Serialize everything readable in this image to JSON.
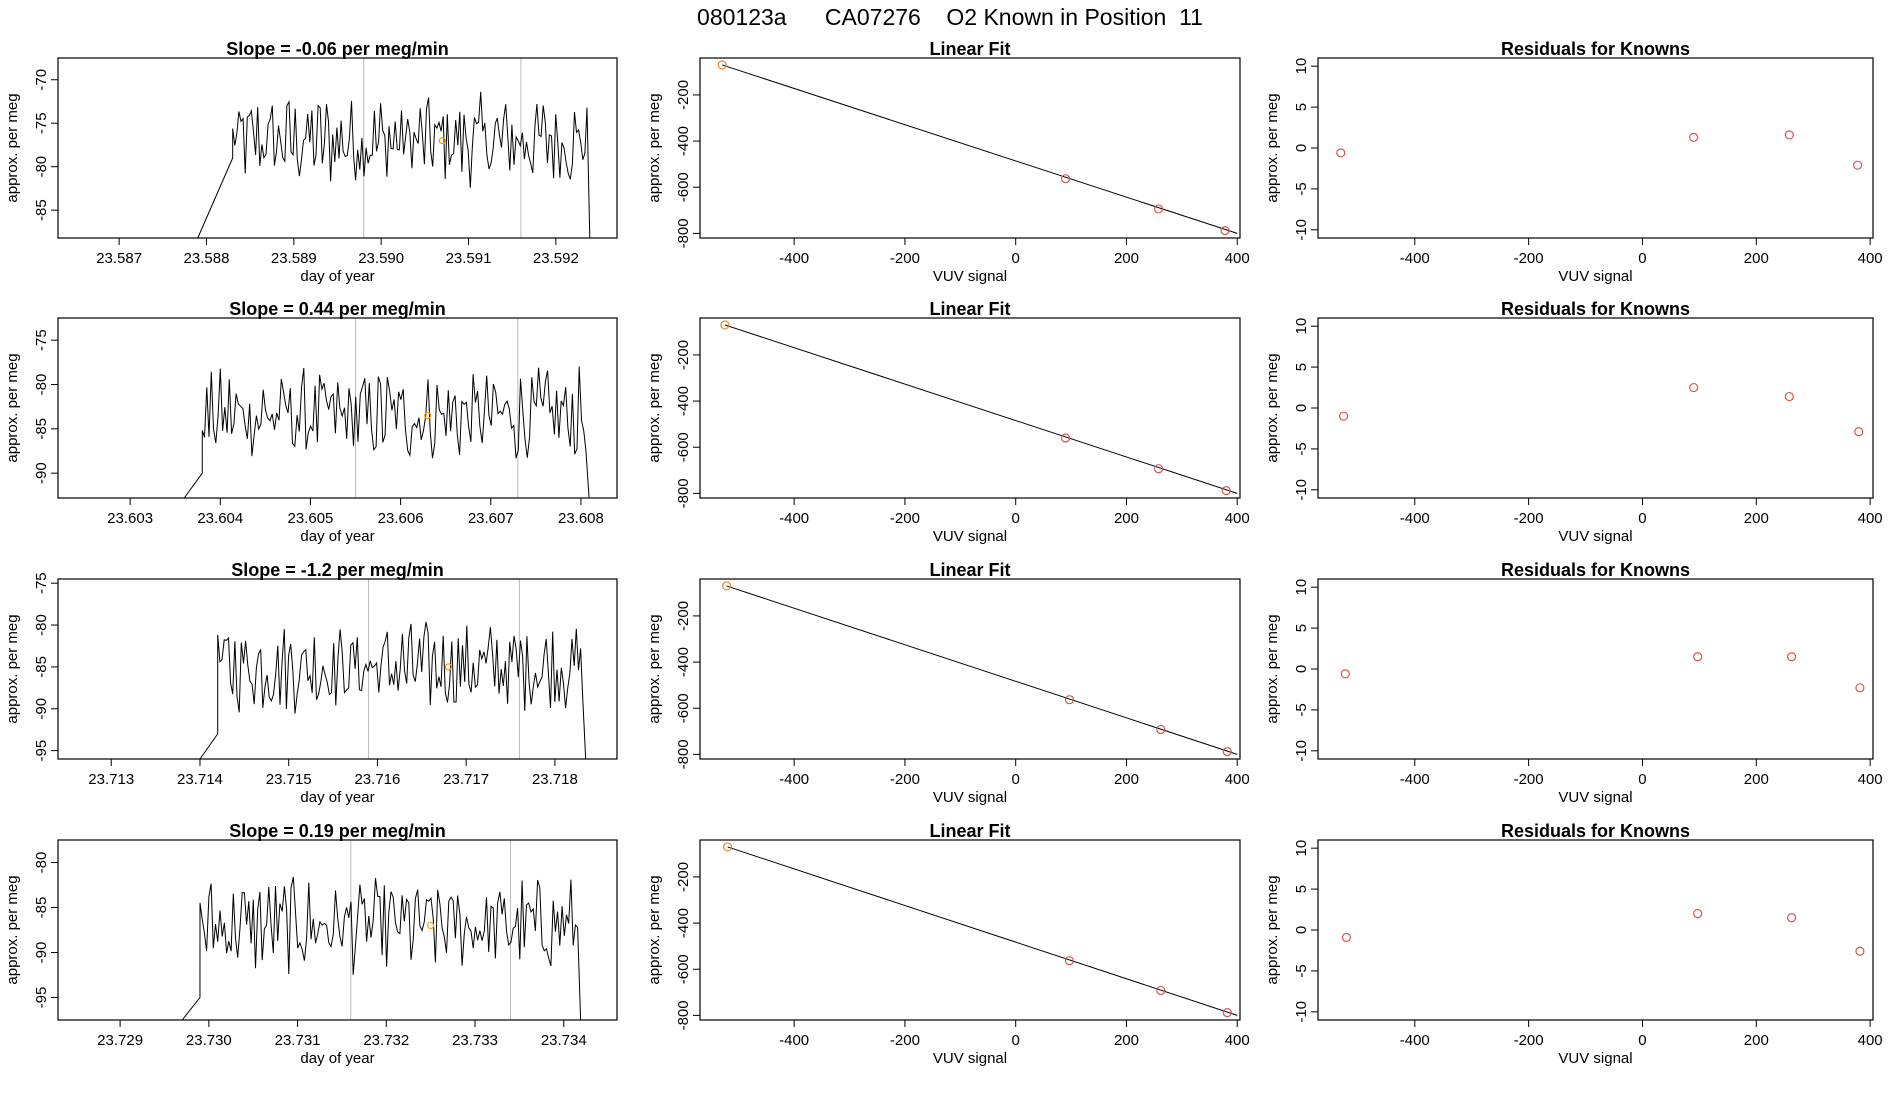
{
  "figure": {
    "title": "080123a      CA07276    O2 Known in Position  11"
  },
  "chart_data": [
    {
      "type": "line",
      "title": "Slope =  -0.06  per meg/min",
      "xlabel": "day of year",
      "ylabel": "approx. per meg",
      "xlim": [
        23.5863,
        23.5927
      ],
      "ylim": [
        -88.2,
        -67.5
      ],
      "xticks": [
        "23.587",
        "23.588",
        "23.589",
        "23.590",
        "23.591",
        "23.592"
      ],
      "xtick_values": [
        23.587,
        23.588,
        23.589,
        23.59,
        23.591,
        23.592
      ],
      "yticks": [
        "-85",
        "-80",
        "-75",
        "-70"
      ],
      "ytick_values": [
        -85,
        -80,
        -75,
        -70
      ],
      "vlines": [
        23.5898,
        23.5916
      ],
      "series_x": [
        23.5879,
        23.5883
      ],
      "series_y": [
        -88.2,
        -79.0
      ],
      "marker": [
        23.5907,
        -77.0
      ]
    },
    {
      "type": "scatter",
      "title": "Linear Fit",
      "xlabel": "VUV signal",
      "ylabel": "approx. per meg",
      "xlim": [
        -570,
        405
      ],
      "ylim": [
        -820,
        -40
      ],
      "xticks": [
        "-400",
        "-200",
        "0",
        "200",
        "400"
      ],
      "xtick_values": [
        -400,
        -200,
        0,
        200,
        400
      ],
      "yticks": [
        "-800",
        "-600",
        "-400",
        "-200"
      ],
      "ytick_values": [
        -800,
        -600,
        -400,
        -200
      ],
      "points": [
        [
          -530,
          -70
        ],
        [
          90,
          -563
        ],
        [
          258,
          -694
        ],
        [
          378,
          -788
        ]
      ],
      "fit_line": [
        [
          -530,
          -70
        ],
        [
          400,
          -800
        ]
      ]
    },
    {
      "type": "scatter",
      "title": "Residuals for Knowns",
      "xlabel": "VUV signal",
      "ylabel": "approx. per meg",
      "xlim": [
        -570,
        405
      ],
      "ylim": [
        -11,
        11
      ],
      "xticks": [
        "-400",
        "-200",
        "0",
        "200",
        "400"
      ],
      "xtick_values": [
        -400,
        -200,
        0,
        200,
        400
      ],
      "yticks": [
        "-10",
        "-5",
        "0",
        "5",
        "10"
      ],
      "ytick_values": [
        -10,
        -5,
        0,
        5,
        10
      ],
      "points": [
        [
          -530,
          -0.6
        ],
        [
          90,
          1.3
        ],
        [
          258,
          1.6
        ],
        [
          378,
          -2.1
        ]
      ]
    },
    {
      "type": "line",
      "title": "Slope =  0.44  per meg/min",
      "xlabel": "day of year",
      "ylabel": "approx. per meg",
      "xlim": [
        23.6022,
        23.6084
      ],
      "ylim": [
        -92.8,
        -72.5
      ],
      "xticks": [
        "23.603",
        "23.604",
        "23.605",
        "23.606",
        "23.607",
        "23.608"
      ],
      "xtick_values": [
        23.603,
        23.604,
        23.605,
        23.606,
        23.607,
        23.608
      ],
      "yticks": [
        "-90",
        "-85",
        "-80",
        "-75"
      ],
      "ytick_values": [
        -90,
        -85,
        -80,
        -75
      ],
      "vlines": [
        23.6055,
        23.6073
      ],
      "series_x": [
        23.6036,
        23.6038
      ],
      "series_y": [
        -92.8,
        -90.0
      ],
      "marker": [
        23.6063,
        -83.5
      ]
    },
    {
      "type": "scatter",
      "title": "Linear Fit",
      "xlabel": "VUV signal",
      "ylabel": "approx. per meg",
      "xlim": [
        -570,
        405
      ],
      "ylim": [
        -820,
        -40
      ],
      "xticks": [
        "-400",
        "-200",
        "0",
        "200",
        "400"
      ],
      "xtick_values": [
        -400,
        -200,
        0,
        200,
        400
      ],
      "yticks": [
        "-800",
        "-600",
        "-400",
        "-200"
      ],
      "ytick_values": [
        -800,
        -600,
        -400,
        -200
      ],
      "points": [
        [
          -525,
          -70
        ],
        [
          90,
          -560
        ],
        [
          258,
          -693
        ],
        [
          380,
          -788
        ]
      ],
      "fit_line": [
        [
          -525,
          -70
        ],
        [
          400,
          -800
        ]
      ]
    },
    {
      "type": "scatter",
      "title": "Residuals for Knowns",
      "xlabel": "VUV signal",
      "ylabel": "approx. per meg",
      "xlim": [
        -570,
        405
      ],
      "ylim": [
        -11,
        11
      ],
      "xticks": [
        "-400",
        "-200",
        "0",
        "200",
        "400"
      ],
      "xtick_values": [
        -400,
        -200,
        0,
        200,
        400
      ],
      "yticks": [
        "-10",
        "-5",
        "0",
        "5",
        "10"
      ],
      "ytick_values": [
        -10,
        -5,
        0,
        5,
        10
      ],
      "points": [
        [
          -525,
          -1.0
        ],
        [
          90,
          2.5
        ],
        [
          258,
          1.4
        ],
        [
          380,
          -2.9
        ]
      ]
    },
    {
      "type": "line",
      "title": "Slope =  -1.2  per meg/min",
      "xlabel": "day of year",
      "ylabel": "approx. per meg",
      "xlim": [
        23.7124,
        23.7187
      ],
      "ylim": [
        -96,
        -74.5
      ],
      "xticks": [
        "23.713",
        "23.714",
        "23.715",
        "23.716",
        "23.717",
        "23.718"
      ],
      "xtick_values": [
        23.713,
        23.714,
        23.715,
        23.716,
        23.717,
        23.718
      ],
      "yticks": [
        "-95",
        "-90",
        "-85",
        "-80",
        "-75"
      ],
      "ytick_values": [
        -95,
        -90,
        -85,
        -80,
        -75
      ],
      "vlines": [
        23.7159,
        23.7176
      ],
      "series_x": [
        23.714,
        23.7142
      ],
      "series_y": [
        -96,
        -93.0
      ],
      "marker": [
        23.7168,
        -85.0
      ]
    },
    {
      "type": "scatter",
      "title": "Linear Fit",
      "xlabel": "VUV signal",
      "ylabel": "approx. per meg",
      "xlim": [
        -570,
        405
      ],
      "ylim": [
        -820,
        -40
      ],
      "xticks": [
        "-400",
        "-200",
        "0",
        "200",
        "400"
      ],
      "xtick_values": [
        -400,
        -200,
        0,
        200,
        400
      ],
      "yticks": [
        "-800",
        "-600",
        "-400",
        "-200"
      ],
      "ytick_values": [
        -800,
        -600,
        -400,
        -200
      ],
      "points": [
        [
          -522,
          -70
        ],
        [
          97,
          -563
        ],
        [
          262,
          -692
        ],
        [
          382,
          -788
        ]
      ],
      "fit_line": [
        [
          -522,
          -70
        ],
        [
          400,
          -800
        ]
      ]
    },
    {
      "type": "scatter",
      "title": "Residuals for Knowns",
      "xlabel": "VUV signal",
      "ylabel": "approx. per meg",
      "xlim": [
        -570,
        405
      ],
      "ylim": [
        -11,
        11
      ],
      "xticks": [
        "-400",
        "-200",
        "0",
        "200",
        "400"
      ],
      "xtick_values": [
        -400,
        -200,
        0,
        200,
        400
      ],
      "yticks": [
        "-10",
        "-5",
        "0",
        "5",
        "10"
      ],
      "ytick_values": [
        -10,
        -5,
        0,
        5,
        10
      ],
      "points": [
        [
          -522,
          -0.6
        ],
        [
          97,
          1.5
        ],
        [
          262,
          1.5
        ],
        [
          382,
          -2.3
        ]
      ]
    },
    {
      "type": "line",
      "title": "Slope =  0.19  per meg/min",
      "xlabel": "day of year",
      "ylabel": "approx. per meg",
      "xlim": [
        23.7283,
        23.7346
      ],
      "ylim": [
        -97.5,
        -77.5
      ],
      "xticks": [
        "23.729",
        "23.730",
        "23.731",
        "23.732",
        "23.733",
        "23.734"
      ],
      "xtick_values": [
        23.729,
        23.73,
        23.731,
        23.732,
        23.733,
        23.734
      ],
      "yticks": [
        "-95",
        "-90",
        "-85",
        "-80"
      ],
      "ytick_values": [
        -95,
        -90,
        -85,
        -80
      ],
      "vlines": [
        23.7316,
        23.7334
      ],
      "series_x": [
        23.7297,
        23.7299
      ],
      "series_y": [
        -97.5,
        -95.0
      ],
      "marker": [
        23.7325,
        -87.0
      ]
    },
    {
      "type": "scatter",
      "title": "Linear Fit",
      "xlabel": "VUV signal",
      "ylabel": "approx. per meg",
      "xlim": [
        -570,
        405
      ],
      "ylim": [
        -820,
        -40
      ],
      "xticks": [
        "-400",
        "-200",
        "0",
        "200",
        "400"
      ],
      "xtick_values": [
        -400,
        -200,
        0,
        200,
        400
      ],
      "yticks": [
        "-800",
        "-600",
        "-400",
        "-200"
      ],
      "ytick_values": [
        -800,
        -600,
        -400,
        -200
      ],
      "points": [
        [
          -520,
          -70
        ],
        [
          97,
          -563
        ],
        [
          262,
          -692
        ],
        [
          382,
          -788
        ]
      ],
      "fit_line": [
        [
          -520,
          -70
        ],
        [
          400,
          -800
        ]
      ]
    },
    {
      "type": "scatter",
      "title": "Residuals for Knowns",
      "xlabel": "VUV signal",
      "ylabel": "approx. per meg",
      "xlim": [
        -570,
        405
      ],
      "ylim": [
        -11,
        11
      ],
      "xticks": [
        "-400",
        "-200",
        "0",
        "200",
        "400"
      ],
      "xtick_values": [
        -400,
        -200,
        0,
        200,
        400
      ],
      "yticks": [
        "-10",
        "-5",
        "0",
        "5",
        "10"
      ],
      "ytick_values": [
        -10,
        -5,
        0,
        5,
        10
      ],
      "points": [
        [
          -520,
          -0.9
        ],
        [
          97,
          2.0
        ],
        [
          262,
          1.5
        ],
        [
          382,
          -2.6
        ]
      ]
    }
  ]
}
